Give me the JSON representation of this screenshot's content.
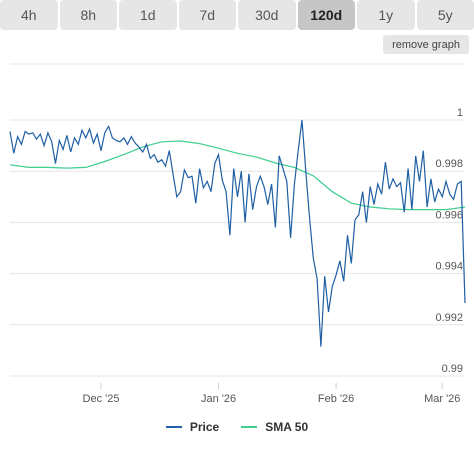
{
  "tabs": [
    {
      "label": "4h",
      "active": false
    },
    {
      "label": "8h",
      "active": false
    },
    {
      "label": "1d",
      "active": false
    },
    {
      "label": "7d",
      "active": false
    },
    {
      "label": "30d",
      "active": false
    },
    {
      "label": "120d",
      "active": true
    },
    {
      "label": "1y",
      "active": false
    },
    {
      "label": "5y",
      "active": false
    }
  ],
  "remove_graph_label": "remove graph",
  "colors": {
    "price": "#1f5fa3",
    "sma": "#3ecf8e",
    "grid": "#e6e6e6"
  },
  "chart_data": {
    "type": "line",
    "title": "",
    "xlabel": "",
    "ylabel": "",
    "ylim": [
      0.99,
      1.0
    ],
    "yticks": [
      "1",
      "0.998",
      "0.996",
      "0.994",
      "0.992",
      "0.99"
    ],
    "ytick_values": [
      1.0,
      0.998,
      0.996,
      0.994,
      0.992,
      0.99
    ],
    "x_range": [
      "2025-11-07",
      "2026-03-07"
    ],
    "xticks": [
      {
        "label": "Dec '25",
        "date": "2025-12-01"
      },
      {
        "label": "Jan '26",
        "date": "2026-01-01"
      },
      {
        "label": "Feb '26",
        "date": "2026-02-01"
      },
      {
        "label": "Mar '26",
        "date": "2026-03-01"
      }
    ],
    "grid": true,
    "legend": "bottom",
    "series": [
      {
        "name": "Price",
        "points": [
          [
            "2025-11-07",
            0.99955
          ],
          [
            "2025-11-08",
            0.9987
          ],
          [
            "2025-11-09",
            0.99935
          ],
          [
            "2025-11-10",
            0.99905
          ],
          [
            "2025-11-11",
            0.99955
          ],
          [
            "2025-11-12",
            0.99945
          ],
          [
            "2025-11-13",
            0.9995
          ],
          [
            "2025-11-14",
            0.99925
          ],
          [
            "2025-11-15",
            0.99945
          ],
          [
            "2025-11-16",
            0.999
          ],
          [
            "2025-11-17",
            0.9995
          ],
          [
            "2025-11-18",
            0.99915
          ],
          [
            "2025-11-19",
            0.9983
          ],
          [
            "2025-11-20",
            0.9992
          ],
          [
            "2025-11-21",
            0.99885
          ],
          [
            "2025-11-22",
            0.9994
          ],
          [
            "2025-11-23",
            0.99875
          ],
          [
            "2025-11-24",
            0.9993
          ],
          [
            "2025-11-25",
            0.99905
          ],
          [
            "2025-11-26",
            0.9996
          ],
          [
            "2025-11-27",
            0.9993
          ],
          [
            "2025-11-28",
            0.99965
          ],
          [
            "2025-11-29",
            0.9991
          ],
          [
            "2025-11-30",
            0.99945
          ],
          [
            "2025-12-01",
            0.9988
          ],
          [
            "2025-12-02",
            0.9995
          ],
          [
            "2025-12-03",
            0.99975
          ],
          [
            "2025-12-04",
            0.9993
          ],
          [
            "2025-12-05",
            0.9992
          ],
          [
            "2025-12-06",
            0.99915
          ],
          [
            "2025-12-07",
            0.9993
          ],
          [
            "2025-12-08",
            0.99905
          ],
          [
            "2025-12-09",
            0.99935
          ],
          [
            "2025-12-10",
            0.9991
          ],
          [
            "2025-12-11",
            0.99895
          ],
          [
            "2025-12-12",
            0.99875
          ],
          [
            "2025-12-13",
            0.99905
          ],
          [
            "2025-12-14",
            0.9985
          ],
          [
            "2025-12-15",
            0.99865
          ],
          [
            "2025-12-16",
            0.99835
          ],
          [
            "2025-12-17",
            0.99845
          ],
          [
            "2025-12-18",
            0.9982
          ],
          [
            "2025-12-19",
            0.9988
          ],
          [
            "2025-12-20",
            0.9979
          ],
          [
            "2025-12-21",
            0.997
          ],
          [
            "2025-12-22",
            0.9972
          ],
          [
            "2025-12-23",
            0.99805
          ],
          [
            "2025-12-24",
            0.99775
          ],
          [
            "2025-12-25",
            0.9978
          ],
          [
            "2025-12-26",
            0.99675
          ],
          [
            "2025-12-27",
            0.9981
          ],
          [
            "2025-12-28",
            0.99735
          ],
          [
            "2025-12-29",
            0.9976
          ],
          [
            "2025-12-30",
            0.9972
          ],
          [
            "2025-12-31",
            0.9983
          ],
          [
            "2026-01-01",
            0.99865
          ],
          [
            "2026-01-02",
            0.99765
          ],
          [
            "2026-01-03",
            0.9972
          ],
          [
            "2026-01-04",
            0.9955
          ],
          [
            "2026-01-05",
            0.9981
          ],
          [
            "2026-01-06",
            0.997
          ],
          [
            "2026-01-07",
            0.998
          ],
          [
            "2026-01-08",
            0.996
          ],
          [
            "2026-01-09",
            0.9979
          ],
          [
            "2026-01-10",
            0.9965
          ],
          [
            "2026-01-11",
            0.9974
          ],
          [
            "2026-01-12",
            0.9978
          ],
          [
            "2026-01-13",
            0.9974
          ],
          [
            "2026-01-14",
            0.9967
          ],
          [
            "2026-01-15",
            0.9975
          ],
          [
            "2026-01-16",
            0.9958
          ],
          [
            "2026-01-17",
            0.9986
          ],
          [
            "2026-01-18",
            0.9981
          ],
          [
            "2026-01-19",
            0.9976
          ],
          [
            "2026-01-20",
            0.9954
          ],
          [
            "2026-01-21",
            0.9975
          ],
          [
            "2026-01-22",
            0.9988
          ],
          [
            "2026-01-23",
            1.0
          ],
          [
            "2026-01-24",
            0.998
          ],
          [
            "2026-01-25",
            0.9962
          ],
          [
            "2026-01-26",
            0.9946
          ],
          [
            "2026-01-27",
            0.9938
          ],
          [
            "2026-01-28",
            0.99115
          ],
          [
            "2026-01-29",
            0.9939
          ],
          [
            "2026-01-30",
            0.9925
          ],
          [
            "2026-01-31",
            0.9935
          ],
          [
            "2026-02-01",
            0.99395
          ],
          [
            "2026-02-02",
            0.9945
          ],
          [
            "2026-02-03",
            0.9937
          ],
          [
            "2026-02-04",
            0.9955
          ],
          [
            "2026-02-05",
            0.9944
          ],
          [
            "2026-02-06",
            0.9961
          ],
          [
            "2026-02-07",
            0.9963
          ],
          [
            "2026-02-08",
            0.9972
          ],
          [
            "2026-02-09",
            0.996
          ],
          [
            "2026-02-10",
            0.9974
          ],
          [
            "2026-02-11",
            0.9967
          ],
          [
            "2026-02-12",
            0.9975
          ],
          [
            "2026-02-13",
            0.9971
          ],
          [
            "2026-02-14",
            0.99835
          ],
          [
            "2026-02-15",
            0.9973
          ],
          [
            "2026-02-16",
            0.9977
          ],
          [
            "2026-02-17",
            0.9974
          ],
          [
            "2026-02-18",
            0.99755
          ],
          [
            "2026-02-19",
            0.9964
          ],
          [
            "2026-02-20",
            0.9981
          ],
          [
            "2026-02-21",
            0.9965
          ],
          [
            "2026-02-22",
            0.9986
          ],
          [
            "2026-02-23",
            0.9976
          ],
          [
            "2026-02-24",
            0.9988
          ],
          [
            "2026-02-25",
            0.9966
          ],
          [
            "2026-02-26",
            0.9977
          ],
          [
            "2026-02-27",
            0.9968
          ],
          [
            "2026-02-28",
            0.9973
          ],
          [
            "2026-03-01",
            0.997
          ],
          [
            "2026-03-02",
            0.9976
          ],
          [
            "2026-03-03",
            0.9971
          ],
          [
            "2026-03-04",
            0.9969
          ],
          [
            "2026-03-05",
            0.9975
          ],
          [
            "2026-03-06",
            0.9976
          ],
          [
            "2026-03-07",
            0.99285
          ]
        ]
      },
      {
        "name": "SMA 50",
        "points": [
          [
            "2025-11-07",
            0.99825
          ],
          [
            "2025-11-12",
            0.99815
          ],
          [
            "2025-11-17",
            0.99815
          ],
          [
            "2025-11-22",
            0.99812
          ],
          [
            "2025-11-27",
            0.99815
          ],
          [
            "2025-12-02",
            0.99838
          ],
          [
            "2025-12-07",
            0.99865
          ],
          [
            "2025-12-12",
            0.99895
          ],
          [
            "2025-12-17",
            0.99915
          ],
          [
            "2025-12-22",
            0.99918
          ],
          [
            "2025-12-27",
            0.99908
          ],
          [
            "2026-01-01",
            0.9989
          ],
          [
            "2026-01-06",
            0.9987
          ],
          [
            "2026-01-11",
            0.99855
          ],
          [
            "2026-01-16",
            0.99832
          ],
          [
            "2026-01-21",
            0.99815
          ],
          [
            "2026-01-26",
            0.99782
          ],
          [
            "2026-01-31",
            0.9972
          ],
          [
            "2026-02-05",
            0.99675
          ],
          [
            "2026-02-10",
            0.9966
          ],
          [
            "2026-02-15",
            0.99653
          ],
          [
            "2026-02-20",
            0.9965
          ],
          [
            "2026-02-25",
            0.9965
          ],
          [
            "2026-03-02",
            0.9965
          ],
          [
            "2026-03-07",
            0.9966
          ]
        ]
      }
    ]
  }
}
